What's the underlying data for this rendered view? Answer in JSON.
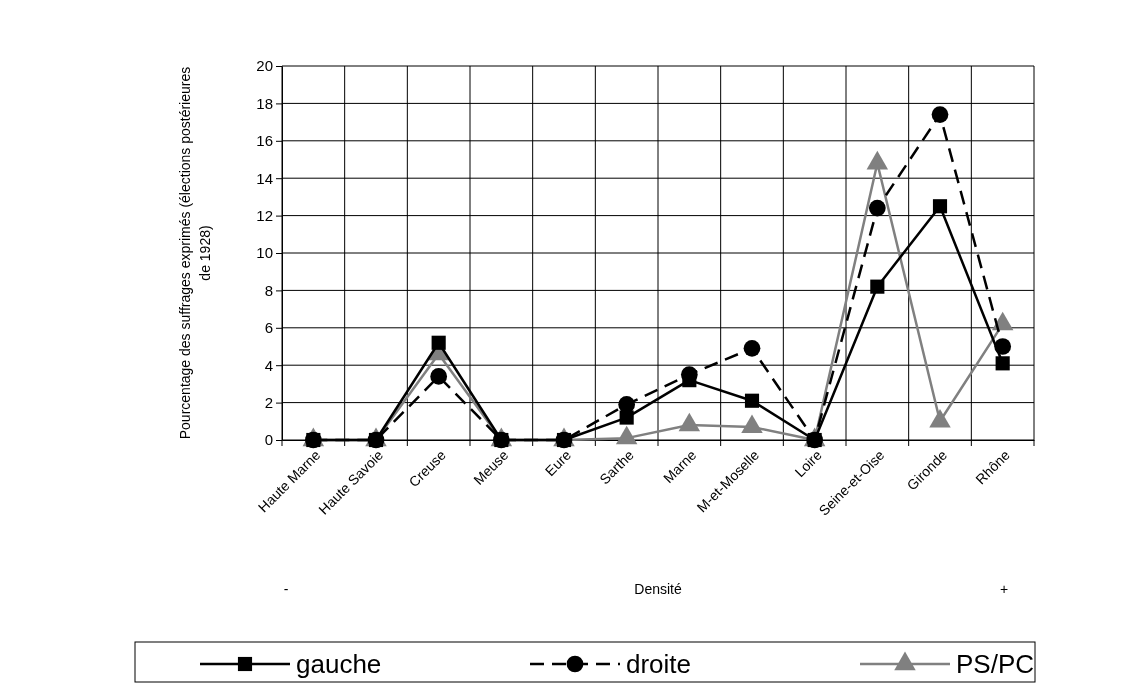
{
  "chart_data": {
    "type": "line",
    "xlabel": "Densité",
    "ylabel": "Pourcentage des suffrages exprimés (élections postérieures de 1928)",
    "categories": [
      "Haute Marne",
      "Haute Savoie",
      "Creuse",
      "Meuse",
      "Eure",
      "Sarthe",
      "Marne",
      "M-et-Moselle",
      "Loire",
      "Seine-et-Oise",
      "Gironde",
      "Rhône"
    ],
    "series": [
      {
        "name": "gauche",
        "color": "#000000",
        "marker": "square",
        "line_style": "solid",
        "values": [
          0,
          0,
          5.2,
          0,
          0,
          1.2,
          3.2,
          2.1,
          0,
          8.2,
          12.5,
          4.1
        ]
      },
      {
        "name": "droite",
        "color": "#000000",
        "marker": "circle",
        "line_style": "dashed",
        "values": [
          0,
          0,
          3.4,
          0,
          0,
          1.9,
          3.5,
          4.9,
          0,
          12.4,
          17.4,
          5.0
        ]
      },
      {
        "name": "PS/PC",
        "color": "#808080",
        "marker": "triangle",
        "line_style": "solid",
        "values": [
          0,
          0,
          4.6,
          0,
          0,
          0.1,
          0.8,
          0.7,
          0,
          14.8,
          1.0,
          6.2
        ]
      }
    ],
    "ylim": [
      0,
      20
    ],
    "yticks": [
      0,
      2,
      4,
      6,
      8,
      10,
      12,
      14,
      16,
      18,
      20
    ],
    "grid": true,
    "legend": "bottom",
    "annotations": [
      "-",
      "+"
    ]
  }
}
